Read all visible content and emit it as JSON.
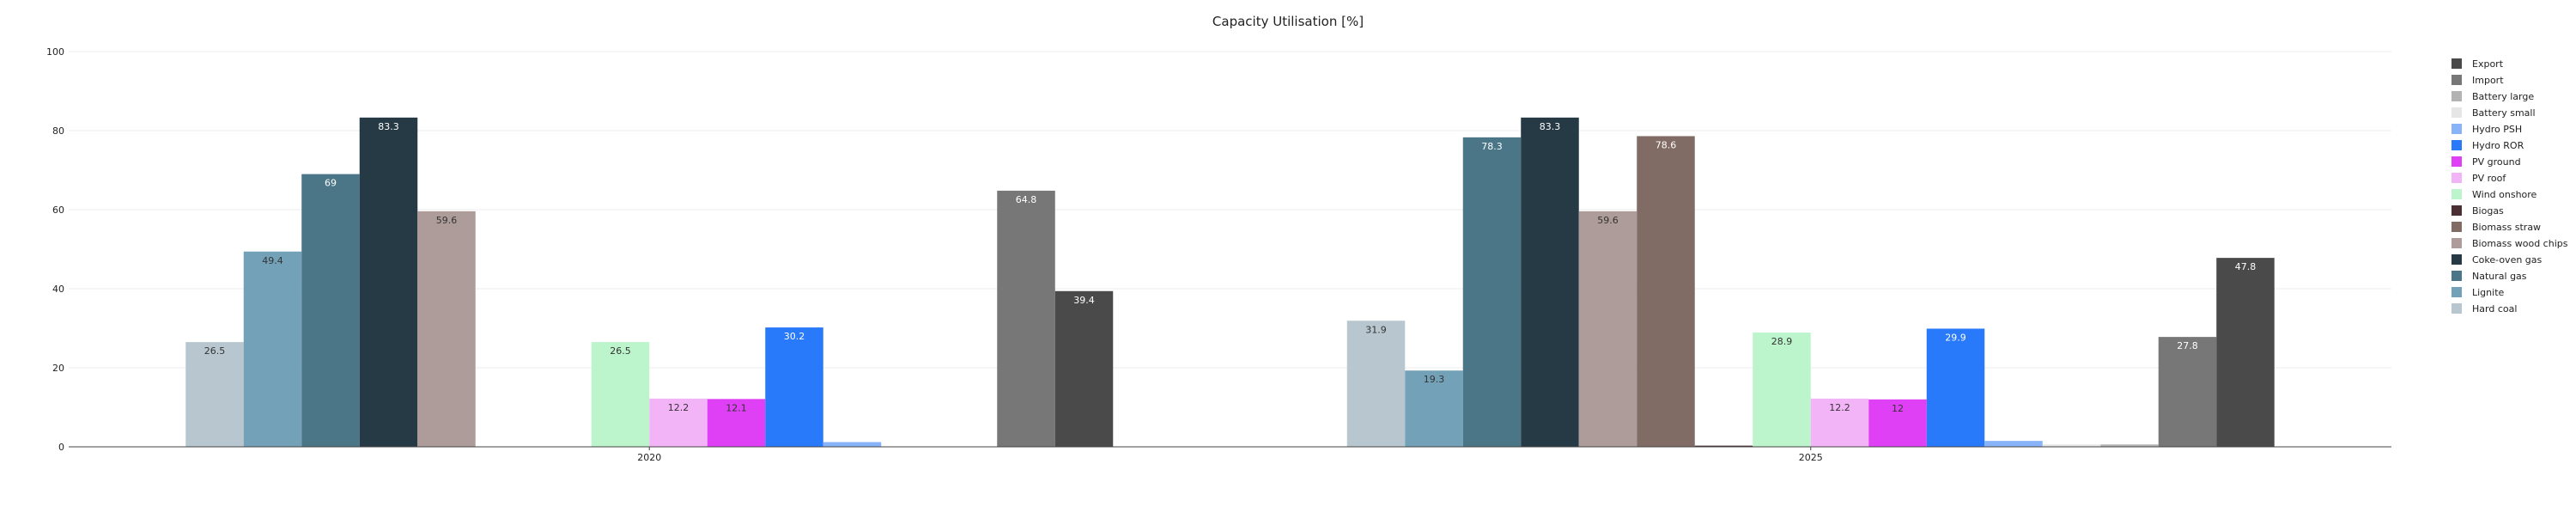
{
  "chart_data": {
    "type": "bar",
    "title": "Capacity Utilisation [%]",
    "xlabel": "",
    "ylabel": "",
    "ylim": [
      0,
      100
    ],
    "yticks": [
      0,
      20,
      40,
      60,
      80,
      100
    ],
    "grid": true,
    "legend_position": "right",
    "categories": [
      "2020",
      "2025"
    ],
    "series": [
      {
        "name": "Hard coal",
        "color": "#b8c7cf",
        "label_color": "#333333",
        "values": [
          26.5,
          31.9
        ]
      },
      {
        "name": "Lignite",
        "color": "#73a2b8",
        "label_color": "#333333",
        "values": [
          49.4,
          19.3
        ]
      },
      {
        "name": "Natural gas",
        "color": "#4a7688",
        "label_color": "#ffffff",
        "values": [
          69,
          78.3
        ]
      },
      {
        "name": "Coke-oven gas",
        "color": "#263a45",
        "label_color": "#ffffff",
        "values": [
          83.3,
          83.3
        ]
      },
      {
        "name": "Biomass wood chips",
        "color": "#ad9c99",
        "label_color": "#333333",
        "values": [
          59.6,
          59.6
        ]
      },
      {
        "name": "Biomass straw",
        "color": "#806c65",
        "label_color": "#ffffff",
        "values": [
          0,
          78.6
        ]
      },
      {
        "name": "Biogas",
        "color": "#4a2f34",
        "label_color": "#ffffff",
        "values": [
          0,
          0.3
        ]
      },
      {
        "name": "Wind onshore",
        "color": "#bcf5cc",
        "label_color": "#333333",
        "values": [
          26.5,
          28.9
        ]
      },
      {
        "name": "PV roof",
        "color": "#f2b4f7",
        "label_color": "#333333",
        "values": [
          12.2,
          12.2
        ]
      },
      {
        "name": "PV ground",
        "color": "#e040f5",
        "label_color": "#333333",
        "values": [
          12.1,
          12
        ]
      },
      {
        "name": "Hydro ROR",
        "color": "#2979fb",
        "label_color": "#ffffff",
        "values": [
          30.2,
          29.9
        ]
      },
      {
        "name": "Hydro PSH",
        "color": "#88b3f8",
        "label_color": "#333333",
        "values": [
          1.2,
          1.5
        ]
      },
      {
        "name": "Battery small",
        "color": "#e6e6e6",
        "label_color": "#333333",
        "values": [
          0,
          0.6
        ]
      },
      {
        "name": "Battery large",
        "color": "#b3b3b3",
        "label_color": "#333333",
        "values": [
          0,
          0.6
        ]
      },
      {
        "name": "Import",
        "color": "#777777",
        "label_color": "#ffffff",
        "values": [
          64.8,
          27.8
        ]
      },
      {
        "name": "Export",
        "color": "#4a4a4a",
        "label_color": "#ffffff",
        "values": [
          39.4,
          47.8
        ]
      }
    ],
    "data_labels": [
      [
        "26.5",
        "31.9"
      ],
      [
        "49.4",
        "19.3"
      ],
      [
        "69",
        "78.3"
      ],
      [
        "83.3",
        "83.3"
      ],
      [
        "59.6",
        "59.6"
      ],
      [
        "",
        "78.6"
      ],
      [
        "",
        ""
      ],
      [
        "26.5",
        "28.9"
      ],
      [
        "12.2",
        "12.2"
      ],
      [
        "12.1",
        "12"
      ],
      [
        "30.2",
        "29.9"
      ],
      [
        "",
        ""
      ],
      [
        "",
        ""
      ],
      [
        "",
        ""
      ],
      [
        "64.8",
        "27.8"
      ],
      [
        "39.4",
        "47.8"
      ]
    ],
    "legend": [
      "Export",
      "Import",
      "Battery large",
      "Battery small",
      "Hydro PSH",
      "Hydro ROR",
      "PV ground",
      "PV roof",
      "Wind onshore",
      "Biogas",
      "Biomass straw",
      "Biomass wood chips",
      "Coke-oven gas",
      "Natural gas",
      "Lignite",
      "Hard coal"
    ]
  }
}
